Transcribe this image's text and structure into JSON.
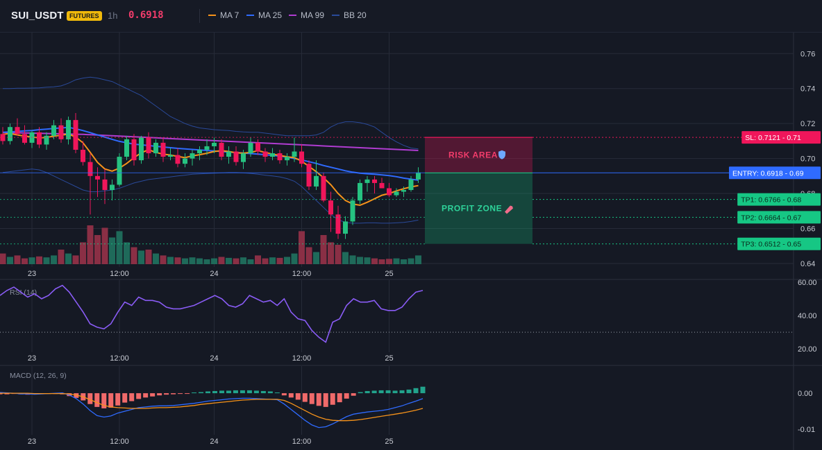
{
  "header": {
    "symbol": "SUI_USDT",
    "badge": "FUTURES",
    "timeframe": "1h",
    "price": "0.6918",
    "legend": [
      {
        "label": "MA 7",
        "color": "#f7931a"
      },
      {
        "label": "MA 25",
        "color": "#2f6bff"
      },
      {
        "label": "MA 99",
        "color": "#b03cd1"
      },
      {
        "label": "BB 20",
        "color": "#2a4a9a"
      }
    ]
  },
  "colors": {
    "up": "#26c281",
    "down": "#f0165b",
    "bg": "#151924",
    "grid": "#262b38"
  },
  "chart_data": [
    {
      "type": "candlestick",
      "title": "SUI_USDT",
      "ylim": [
        0.638,
        0.772
      ],
      "y_ticks": [
        "0.76",
        "0.74",
        "0.72",
        "0.70",
        "0.68",
        "0.66",
        "0.64"
      ],
      "x_ticks": [
        "23",
        "12:00",
        "24",
        "12:00",
        "25"
      ],
      "x_tick_index": [
        4,
        16,
        29,
        41,
        53
      ],
      "candles": [
        [
          0.714,
          0.718,
          0.708,
          0.71
        ],
        [
          0.71,
          0.72,
          0.708,
          0.718
        ],
        [
          0.718,
          0.723,
          0.713,
          0.714
        ],
        [
          0.714,
          0.719,
          0.708,
          0.709
        ],
        [
          0.709,
          0.716,
          0.706,
          0.715
        ],
        [
          0.715,
          0.718,
          0.706,
          0.708
        ],
        [
          0.708,
          0.715,
          0.705,
          0.713
        ],
        [
          0.713,
          0.722,
          0.711,
          0.719
        ],
        [
          0.719,
          0.723,
          0.709,
          0.711
        ],
        [
          0.711,
          0.724,
          0.708,
          0.722
        ],
        [
          0.722,
          0.726,
          0.703,
          0.705
        ],
        [
          0.705,
          0.71,
          0.696,
          0.698
        ],
        [
          0.698,
          0.703,
          0.668,
          0.69
        ],
        [
          0.69,
          0.695,
          0.678,
          0.688
        ],
        [
          0.688,
          0.694,
          0.674,
          0.682
        ],
        [
          0.682,
          0.688,
          0.676,
          0.685
        ],
        [
          0.685,
          0.703,
          0.684,
          0.701
        ],
        [
          0.701,
          0.713,
          0.699,
          0.711
        ],
        [
          0.711,
          0.714,
          0.696,
          0.699
        ],
        [
          0.699,
          0.713,
          0.697,
          0.712
        ],
        [
          0.712,
          0.715,
          0.7,
          0.703
        ],
        [
          0.703,
          0.711,
          0.701,
          0.709
        ],
        [
          0.709,
          0.712,
          0.698,
          0.701
        ],
        [
          0.701,
          0.706,
          0.699,
          0.702
        ],
        [
          0.702,
          0.706,
          0.695,
          0.697
        ],
        [
          0.697,
          0.703,
          0.695,
          0.7
        ],
        [
          0.7,
          0.705,
          0.696,
          0.703
        ],
        [
          0.703,
          0.707,
          0.699,
          0.705
        ],
        [
          0.705,
          0.711,
          0.702,
          0.707
        ],
        [
          0.707,
          0.712,
          0.703,
          0.709
        ],
        [
          0.709,
          0.711,
          0.699,
          0.701
        ],
        [
          0.701,
          0.707,
          0.697,
          0.704
        ],
        [
          0.704,
          0.707,
          0.696,
          0.698
        ],
        [
          0.698,
          0.705,
          0.694,
          0.703
        ],
        [
          0.703,
          0.712,
          0.701,
          0.709
        ],
        [
          0.709,
          0.711,
          0.702,
          0.704
        ],
        [
          0.704,
          0.706,
          0.698,
          0.701
        ],
        [
          0.701,
          0.706,
          0.699,
          0.703
        ],
        [
          0.703,
          0.705,
          0.697,
          0.699
        ],
        [
          0.699,
          0.703,
          0.696,
          0.701
        ],
        [
          0.701,
          0.712,
          0.698,
          0.704
        ],
        [
          0.704,
          0.708,
          0.695,
          0.697
        ],
        [
          0.697,
          0.699,
          0.682,
          0.684
        ],
        [
          0.684,
          0.699,
          0.682,
          0.69
        ],
        [
          0.69,
          0.692,
          0.675,
          0.676
        ],
        [
          0.676,
          0.681,
          0.658,
          0.668
        ],
        [
          0.668,
          0.673,
          0.654,
          0.657
        ],
        [
          0.657,
          0.667,
          0.654,
          0.664
        ],
        [
          0.664,
          0.678,
          0.662,
          0.676
        ],
        [
          0.676,
          0.688,
          0.674,
          0.686
        ],
        [
          0.686,
          0.69,
          0.681,
          0.688
        ],
        [
          0.688,
          0.69,
          0.68,
          0.686
        ],
        [
          0.686,
          0.689,
          0.683,
          0.683
        ],
        [
          0.683,
          0.686,
          0.678,
          0.679
        ],
        [
          0.679,
          0.683,
          0.678,
          0.681
        ],
        [
          0.681,
          0.684,
          0.678,
          0.682
        ],
        [
          0.682,
          0.69,
          0.681,
          0.688
        ],
        [
          0.688,
          0.695,
          0.686,
          0.692
        ]
      ],
      "ma7": [
        0.7138,
        0.7143,
        0.7135,
        0.7128,
        0.7123,
        0.7118,
        0.712,
        0.7128,
        0.7133,
        0.714,
        0.7123,
        0.709,
        0.7035,
        0.6978,
        0.694,
        0.6928,
        0.6945,
        0.6972,
        0.7005,
        0.7033,
        0.705,
        0.7035,
        0.7025,
        0.702,
        0.7012,
        0.7005,
        0.7015,
        0.7022,
        0.703,
        0.704,
        0.7045,
        0.704,
        0.7033,
        0.703,
        0.7035,
        0.7045,
        0.7035,
        0.7025,
        0.7018,
        0.701,
        0.7005,
        0.6985,
        0.6955,
        0.6925,
        0.689,
        0.685,
        0.68,
        0.676,
        0.674,
        0.6733,
        0.675,
        0.677,
        0.679,
        0.68,
        0.6815,
        0.6827,
        0.6838,
        0.6845
      ],
      "ma25": [
        0.715,
        0.7152,
        0.7155,
        0.7158,
        0.716,
        0.7165,
        0.7168,
        0.7172,
        0.7175,
        0.7178,
        0.717,
        0.716,
        0.7148,
        0.7135,
        0.7122,
        0.711,
        0.7098,
        0.709,
        0.7082,
        0.7078,
        0.7074,
        0.707,
        0.7066,
        0.7062,
        0.7058,
        0.7055,
        0.7052,
        0.7049,
        0.7046,
        0.7043,
        0.704,
        0.7037,
        0.7034,
        0.7031,
        0.7028,
        0.7025,
        0.7022,
        0.7018,
        0.7014,
        0.7008,
        0.7,
        0.6992,
        0.6982,
        0.6972,
        0.696,
        0.695,
        0.694,
        0.693,
        0.6922,
        0.6916,
        0.6913,
        0.691,
        0.6906,
        0.6902,
        0.6896,
        0.6888,
        0.6882,
        0.6876
      ],
      "ma99": [
        0.7149,
        0.7148,
        0.7147,
        0.7146,
        0.7145,
        0.7144,
        0.7143,
        0.7142,
        0.7141,
        0.714,
        0.7139,
        0.7138,
        0.7136,
        0.7134,
        0.7132,
        0.713,
        0.7128,
        0.7126,
        0.7124,
        0.7122,
        0.712,
        0.7118,
        0.7116,
        0.7114,
        0.7112,
        0.711,
        0.7108,
        0.7106,
        0.7104,
        0.7102,
        0.71,
        0.7098,
        0.7096,
        0.7094,
        0.7092,
        0.709,
        0.7088,
        0.7086,
        0.7084,
        0.7082,
        0.708,
        0.7078,
        0.7076,
        0.7074,
        0.7072,
        0.707,
        0.7068,
        0.7066,
        0.7064,
        0.7062,
        0.706,
        0.7058,
        0.7056,
        0.7054,
        0.7052,
        0.705,
        0.7048,
        0.7046
      ],
      "bb_upper": [
        0.74,
        0.74,
        0.7402,
        0.7402,
        0.7403,
        0.7404,
        0.7408,
        0.741,
        0.7415,
        0.743,
        0.745,
        0.746,
        0.7465,
        0.746,
        0.745,
        0.744,
        0.742,
        0.74,
        0.738,
        0.736,
        0.733,
        0.73,
        0.727,
        0.724,
        0.722,
        0.72,
        0.7185,
        0.7175,
        0.717,
        0.7165,
        0.7162,
        0.716,
        0.7155,
        0.7152,
        0.715,
        0.715,
        0.7145,
        0.714,
        0.7135,
        0.713,
        0.713,
        0.713,
        0.713,
        0.7135,
        0.715,
        0.718,
        0.72,
        0.721,
        0.721,
        0.7205,
        0.7195,
        0.718,
        0.715,
        0.712,
        0.7095,
        0.7075,
        0.706,
        0.7055
      ],
      "bb_lower": [
        0.692,
        0.6925,
        0.693,
        0.6935,
        0.694,
        0.6935,
        0.692,
        0.69,
        0.688,
        0.686,
        0.684,
        0.682,
        0.681,
        0.681,
        0.6815,
        0.682,
        0.683,
        0.6845,
        0.686,
        0.687,
        0.688,
        0.6885,
        0.689,
        0.6895,
        0.69,
        0.6905,
        0.691,
        0.6912,
        0.6914,
        0.6916,
        0.6918,
        0.692,
        0.692,
        0.6918,
        0.6915,
        0.691,
        0.6905,
        0.69,
        0.6895,
        0.6885,
        0.687,
        0.684,
        0.68,
        0.676,
        0.672,
        0.668,
        0.665,
        0.6635,
        0.663,
        0.663,
        0.6632,
        0.6632,
        0.663,
        0.663,
        0.6632,
        0.6635,
        0.664,
        0.6648
      ],
      "volume_relative": [
        0.22,
        0.15,
        0.18,
        0.12,
        0.14,
        0.16,
        0.14,
        0.18,
        0.3,
        0.22,
        0.18,
        0.45,
        0.8,
        0.6,
        0.75,
        0.55,
        0.68,
        0.45,
        0.35,
        0.28,
        0.3,
        0.22,
        0.18,
        0.15,
        0.14,
        0.12,
        0.14,
        0.12,
        0.1,
        0.12,
        0.15,
        0.13,
        0.12,
        0.14,
        0.1,
        0.18,
        0.12,
        0.14,
        0.13,
        0.15,
        0.22,
        0.68,
        0.35,
        0.25,
        0.6,
        0.45,
        0.4,
        0.25,
        0.18,
        0.15,
        0.14,
        0.12,
        0.1,
        0.11,
        0.12,
        0.1,
        0.12,
        0.18
      ],
      "levels": [
        {
          "name": "SL",
          "value": 0.7121,
          "label": "SL: 0.7121",
          "tick": "0.71",
          "color": "#f0165b"
        },
        {
          "name": "ENTRY",
          "value": 0.6918,
          "label": "ENTRY: 0.6918",
          "tick": "0.69",
          "color": "#2f6bff"
        },
        {
          "name": "TP1",
          "value": 0.6766,
          "label": "TP1: 0.6766",
          "tick": "0.68",
          "color": "#16c784"
        },
        {
          "name": "TP2",
          "value": 0.6664,
          "label": "TP2: 0.6664",
          "tick": "0.67",
          "color": "#16c784"
        },
        {
          "name": "TP3",
          "value": 0.6512,
          "label": "TP3: 0.6512",
          "tick": "0.65",
          "color": "#16c784"
        }
      ],
      "zones": [
        {
          "name": "risk",
          "label": "RISK AREA",
          "icon": "shield-icon",
          "from": 0.7121,
          "to": 0.6918,
          "color": "#f0165b"
        },
        {
          "name": "profit",
          "label": "PROFIT ZONE",
          "icon": "rocket-icon",
          "from": 0.6918,
          "to": 0.6512,
          "color": "#16c784"
        }
      ]
    },
    {
      "type": "line",
      "title": "RSI (14)",
      "ylim": [
        18,
        62
      ],
      "y_ticks": [
        "60.00",
        "40.00",
        "20.00"
      ],
      "reference_line": 30,
      "values": [
        52,
        55,
        57,
        54,
        51,
        53,
        50,
        52,
        56,
        58,
        54,
        48,
        42,
        35,
        33,
        32,
        35,
        42,
        48,
        46,
        51,
        49,
        49,
        48,
        45,
        44,
        44,
        45,
        46,
        48,
        50,
        52,
        50,
        46,
        45,
        47,
        52,
        50,
        48,
        49,
        46,
        50,
        42,
        38,
        37,
        31,
        27,
        24,
        36,
        38,
        46,
        50,
        48,
        48,
        49,
        44,
        43,
        43,
        45,
        50,
        54,
        55
      ],
      "color": "#8a5cf6"
    },
    {
      "type": "bar+line",
      "title": "MACD (12, 26, 9)",
      "ylim": [
        -0.0115,
        0.0075
      ],
      "y_ticks": [
        "0.00",
        "-0.01"
      ],
      "histogram": [
        -0.0003,
        -0.0003,
        -0.0002,
        -0.0003,
        -0.0004,
        -0.0003,
        -0.0002,
        -0.0002,
        -0.0002,
        -0.0003,
        -0.0008,
        -0.0013,
        -0.002,
        -0.003,
        -0.0038,
        -0.0042,
        -0.004,
        -0.0034,
        -0.0026,
        -0.0022,
        -0.0016,
        -0.0012,
        -0.0009,
        -0.0006,
        -0.0004,
        -0.0003,
        -0.0002,
        -0.0001,
        0.0002,
        0.0003,
        0.0005,
        0.0006,
        0.0007,
        0.0007,
        0.0008,
        0.0008,
        0.0008,
        0.0007,
        0.0006,
        0.0005,
        0.0002,
        -0.0006,
        -0.0012,
        -0.0018,
        -0.0024,
        -0.003,
        -0.0035,
        -0.0038,
        -0.0032,
        -0.0025,
        -0.0015,
        -0.0007,
        0.0003,
        0.0006,
        0.0007,
        0.0008,
        0.0008,
        0.0007,
        0.0008,
        0.001,
        0.0014,
        0.0018
      ],
      "macd": [
        0.0002,
        0.0001,
        0.0,
        -0.0002,
        -0.0002,
        -0.0003,
        -0.0002,
        -0.0001,
        0.0,
        0.0001,
        -0.0005,
        -0.0015,
        -0.003,
        -0.0048,
        -0.0062,
        -0.0066,
        -0.0063,
        -0.0055,
        -0.005,
        -0.0045,
        -0.004,
        -0.0038,
        -0.0036,
        -0.0035,
        -0.0035,
        -0.0034,
        -0.0032,
        -0.003,
        -0.0028,
        -0.0025,
        -0.0022,
        -0.002,
        -0.0018,
        -0.0016,
        -0.0015,
        -0.0014,
        -0.0014,
        -0.0015,
        -0.0016,
        -0.0017,
        -0.0018,
        -0.003,
        -0.0045,
        -0.006,
        -0.0075,
        -0.0088,
        -0.0095,
        -0.0093,
        -0.0085,
        -0.0075,
        -0.0065,
        -0.0058,
        -0.0055,
        -0.0052,
        -0.005,
        -0.0048,
        -0.0045,
        -0.004,
        -0.0035,
        -0.0028,
        -0.0022,
        -0.0015
      ],
      "signal": [
        0.0,
        0.0,
        0.0,
        0.0,
        0.0,
        -0.0001,
        -0.0001,
        -0.0001,
        -0.0001,
        -0.0001,
        -0.0002,
        -0.0005,
        -0.001,
        -0.0018,
        -0.0026,
        -0.0034,
        -0.0038,
        -0.004,
        -0.0041,
        -0.0042,
        -0.0042,
        -0.0042,
        -0.0041,
        -0.004,
        -0.004,
        -0.0039,
        -0.0038,
        -0.0036,
        -0.0034,
        -0.0031,
        -0.0029,
        -0.0027,
        -0.0025,
        -0.0023,
        -0.0021,
        -0.0019,
        -0.0018,
        -0.0017,
        -0.0017,
        -0.0017,
        -0.0017,
        -0.002,
        -0.0028,
        -0.0038,
        -0.0048,
        -0.0058,
        -0.0066,
        -0.0072,
        -0.0075,
        -0.0076,
        -0.0076,
        -0.0075,
        -0.0073,
        -0.007,
        -0.0067,
        -0.0064,
        -0.0061,
        -0.0058,
        -0.0055,
        -0.0051,
        -0.0047,
        -0.0042
      ],
      "macd_color": "#2f6bff",
      "signal_color": "#f7931a"
    }
  ]
}
